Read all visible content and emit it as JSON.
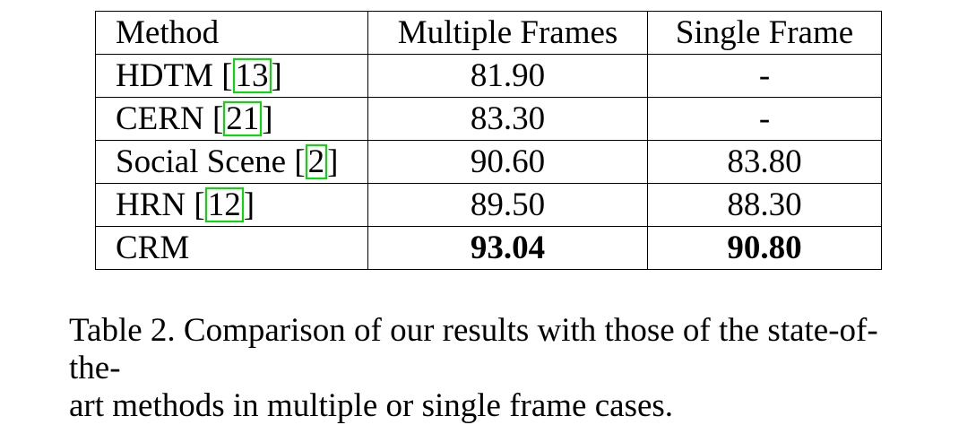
{
  "table": {
    "headers": [
      "Method",
      "Multiple Frames",
      "Single Frame"
    ],
    "rows": [
      {
        "method": "HDTM",
        "cite": "13",
        "multiple": "81.90",
        "single": "-",
        "bold": false
      },
      {
        "method": "CERN",
        "cite": "21",
        "multiple": "83.30",
        "single": "-",
        "bold": false
      },
      {
        "method": "Social Scene",
        "cite": "2",
        "multiple": "90.60",
        "single": "83.80",
        "bold": false
      },
      {
        "method": "HRN",
        "cite": "12",
        "multiple": "89.50",
        "single": "88.30",
        "bold": false
      },
      {
        "method": "CRM",
        "cite": "",
        "multiple": "93.04",
        "single": "90.80",
        "bold": true
      }
    ]
  },
  "caption": {
    "line1": "Table 2. Comparison of our results with those of the state-of-the-",
    "line2": "art methods in multiple or single frame cases."
  },
  "colors": {
    "citation_box": "#00e000"
  }
}
